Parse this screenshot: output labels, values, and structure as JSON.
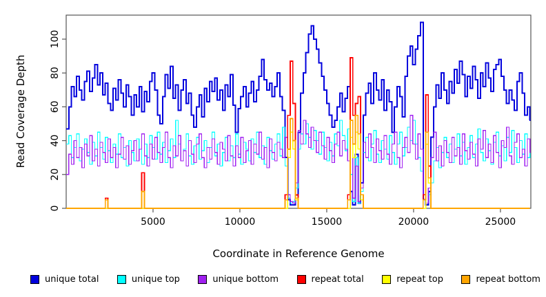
{
  "labels": {
    "ylabel": "Read Coverage Depth",
    "xlabel": "Coordinate in Reference Genome"
  },
  "legend": {
    "items": [
      {
        "label": "unique total",
        "color": "#0000DD"
      },
      {
        "label": "unique top",
        "color": "#00FFFF"
      },
      {
        "label": "unique bottom",
        "color": "#A020F0"
      },
      {
        "label": "repeat total",
        "color": "#FF0000"
      },
      {
        "label": "repeat top",
        "color": "#FFFF00"
      },
      {
        "label": "repeat bottom",
        "color": "#FFA500"
      }
    ]
  },
  "chart_data": {
    "type": "line",
    "step_style": "steps-post",
    "title": "",
    "xlabel": "Coordinate in Reference Genome",
    "ylabel": "Read Coverage Depth",
    "xlim": [
      0,
      26750
    ],
    "ylim": [
      0,
      114.2
    ],
    "x_ticks": [
      5000,
      10000,
      15000,
      20000,
      25000
    ],
    "y_ticks": [
      0,
      20,
      40,
      60,
      80,
      100
    ],
    "grid": false,
    "legend_position": "bottom",
    "x_start": 0,
    "x_step": 150,
    "series": [
      {
        "name": "unique total",
        "color": "#0000DD",
        "width": 2,
        "values": [
          47,
          60,
          72,
          66,
          78,
          70,
          64,
          75,
          81,
          69,
          77,
          85,
          73,
          80,
          67,
          74,
          62,
          58,
          71,
          64,
          76,
          68,
          60,
          73,
          66,
          55,
          67,
          60,
          72,
          57,
          69,
          63,
          75,
          80,
          70,
          55,
          50,
          66,
          79,
          71,
          84,
          65,
          73,
          58,
          70,
          76,
          62,
          68,
          55,
          48,
          60,
          67,
          54,
          71,
          63,
          75,
          69,
          77,
          64,
          70,
          58,
          73,
          66,
          79,
          61,
          45,
          59,
          66,
          72,
          60,
          68,
          75,
          63,
          70,
          78,
          88,
          76,
          70,
          74,
          66,
          72,
          80,
          66,
          58,
          30,
          5,
          2,
          2,
          8,
          45,
          68,
          80,
          92,
          103,
          108,
          100,
          94,
          86,
          78,
          70,
          62,
          55,
          48,
          52,
          60,
          68,
          57,
          65,
          72,
          10,
          2,
          32,
          3,
          15,
          55,
          68,
          74,
          62,
          80,
          70,
          64,
          76,
          58,
          70,
          63,
          45,
          60,
          72,
          66,
          54,
          78,
          90,
          96,
          85,
          94,
          102,
          110,
          5,
          2,
          10,
          42,
          60,
          73,
          65,
          80,
          70,
          62,
          75,
          68,
          82,
          74,
          87,
          79,
          66,
          78,
          71,
          84,
          76,
          65,
          80,
          72,
          86,
          77,
          69,
          82,
          85,
          88,
          78,
          70,
          62,
          70,
          64,
          58,
          75,
          80,
          68,
          55,
          60,
          52
        ]
      },
      {
        "name": "unique top",
        "color": "#00FFFF",
        "width": 1.2,
        "values": [
          38,
          43,
          30,
          36,
          44,
          28,
          35,
          41,
          33,
          26,
          39,
          31,
          45,
          36,
          29,
          42,
          34,
          27,
          38,
          32,
          44,
          30,
          36,
          25,
          40,
          33,
          28,
          41,
          35,
          26,
          38,
          30,
          43,
          36,
          29,
          45,
          32,
          39,
          27,
          34,
          41,
          30,
          52,
          38,
          28,
          35,
          44,
          31,
          26,
          37,
          42,
          29,
          34,
          40,
          27,
          36,
          45,
          31,
          38,
          25,
          33,
          42,
          28,
          37,
          30,
          44,
          32,
          26,
          39,
          35,
          28,
          41,
          33,
          45,
          30,
          37,
          26,
          42,
          34,
          29,
          38,
          44,
          31,
          48,
          25,
          6,
          3,
          4,
          12,
          35,
          44,
          38,
          50,
          42,
          35,
          46,
          40,
          32,
          45,
          36,
          28,
          39,
          31,
          44,
          37,
          52,
          43,
          34,
          47,
          20,
          4,
          30,
          3,
          10,
          33,
          42,
          28,
          38,
          46,
          32,
          27,
          40,
          35,
          29,
          43,
          33,
          26,
          38,
          45,
          31,
          36,
          48,
          40,
          52,
          38,
          30,
          22,
          5,
          3,
          8,
          15,
          28,
          36,
          24,
          33,
          42,
          30,
          38,
          27,
          35,
          44,
          31,
          39,
          26,
          36,
          43,
          30,
          38,
          47,
          33,
          28,
          41,
          34,
          26,
          39,
          45,
          31,
          37,
          28,
          42,
          33,
          46,
          36,
          27,
          40,
          32,
          44,
          30,
          37
        ]
      },
      {
        "name": "unique bottom",
        "color": "#A020F0",
        "width": 1.2,
        "values": [
          20,
          32,
          26,
          40,
          30,
          36,
          24,
          38,
          31,
          43,
          28,
          35,
          25,
          39,
          33,
          27,
          41,
          30,
          36,
          24,
          32,
          42,
          29,
          37,
          26,
          34,
          40,
          28,
          35,
          44,
          31,
          25,
          38,
          29,
          42,
          33,
          27,
          36,
          45,
          30,
          24,
          37,
          31,
          43,
          28,
          34,
          25,
          40,
          32,
          27,
          38,
          44,
          30,
          24,
          36,
          29,
          41,
          33,
          26,
          39,
          35,
          28,
          43,
          31,
          25,
          37,
          30,
          42,
          27,
          34,
          40,
          26,
          38,
          32,
          45,
          29,
          36,
          24,
          41,
          33,
          28,
          39,
          35,
          30,
          42,
          8,
          4,
          3,
          15,
          46,
          38,
          52,
          44,
          36,
          48,
          40,
          33,
          45,
          37,
          29,
          42,
          34,
          27,
          38,
          45,
          31,
          40,
          35,
          28,
          42,
          6,
          25,
          4,
          12,
          39,
          30,
          44,
          36,
          27,
          41,
          34,
          29,
          43,
          32,
          26,
          38,
          45,
          30,
          24,
          36,
          42,
          33,
          55,
          38,
          29,
          44,
          35,
          8,
          3,
          12,
          30,
          45,
          28,
          37,
          25,
          40,
          33,
          27,
          42,
          31,
          36,
          26,
          44,
          34,
          29,
          39,
          32,
          25,
          41,
          35,
          46,
          30,
          38,
          27,
          43,
          33,
          24,
          40,
          36,
          48,
          31,
          26,
          39,
          44,
          30,
          35,
          25,
          41,
          33
        ]
      },
      {
        "name": "repeat total",
        "color": "#FF0000",
        "width": 1.8,
        "length": 179,
        "base": 0,
        "set": [
          [
            15,
            6
          ],
          [
            29,
            21
          ],
          [
            84,
            8
          ],
          [
            85,
            55
          ],
          [
            86,
            87
          ],
          [
            87,
            62
          ],
          [
            88,
            8
          ],
          [
            108,
            8
          ],
          [
            109,
            89
          ],
          [
            110,
            55
          ],
          [
            111,
            62
          ],
          [
            112,
            66
          ],
          [
            113,
            8
          ],
          [
            137,
            8
          ],
          [
            138,
            67
          ],
          [
            139,
            25
          ]
        ]
      },
      {
        "name": "repeat top",
        "color": "#FFFF00",
        "width": 1.5,
        "length": 179,
        "base": 0,
        "set": [
          [
            85,
            30
          ],
          [
            86,
            45
          ],
          [
            87,
            35
          ],
          [
            88,
            5
          ],
          [
            109,
            42
          ],
          [
            110,
            30
          ],
          [
            111,
            45
          ],
          [
            112,
            35
          ],
          [
            113,
            5
          ],
          [
            138,
            38
          ],
          [
            139,
            15
          ]
        ]
      },
      {
        "name": "repeat bottom",
        "color": "#FFA500",
        "width": 1.8,
        "length": 179,
        "base": 0,
        "set": [
          [
            15,
            5
          ],
          [
            29,
            10
          ],
          [
            84,
            5
          ],
          [
            85,
            35
          ],
          [
            86,
            53
          ],
          [
            87,
            40
          ],
          [
            88,
            6
          ],
          [
            108,
            5
          ],
          [
            109,
            52
          ],
          [
            110,
            38
          ],
          [
            111,
            55
          ],
          [
            112,
            44
          ],
          [
            113,
            8
          ],
          [
            137,
            5
          ],
          [
            138,
            45
          ],
          [
            139,
            18
          ]
        ]
      }
    ]
  }
}
